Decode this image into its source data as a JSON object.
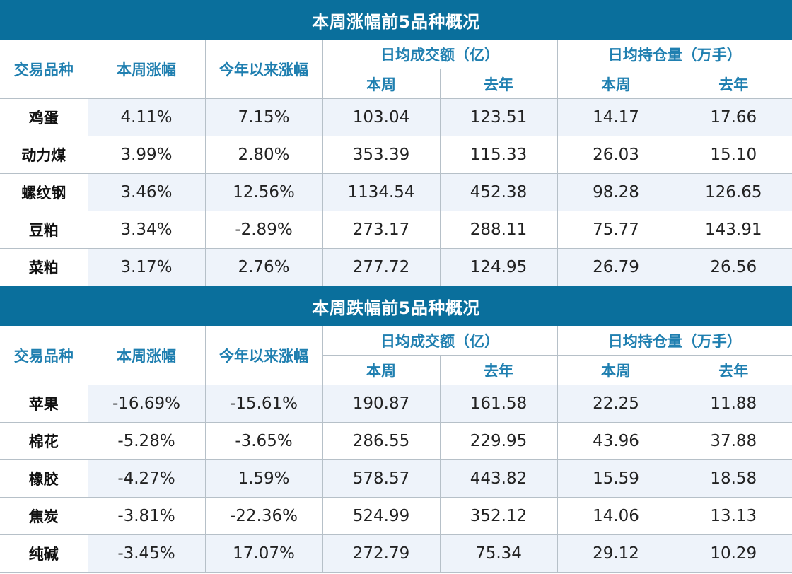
{
  "headers": {
    "variety": "交易品种",
    "week_change": "本周涨幅",
    "ytd_change": "今年以来涨幅",
    "avg_volume": "日均成交额（亿）",
    "avg_open_interest": "日均持仓量（万手）",
    "this_week": "本周",
    "last_year": "去年"
  },
  "tables": [
    {
      "title": "本周涨幅前5品种概况",
      "rows": [
        {
          "name": "鸡蛋",
          "week": "4.11%",
          "ytd": "7.15%",
          "vol_week": "103.04",
          "vol_year": "123.51",
          "oi_week": "14.17",
          "oi_year": "17.66"
        },
        {
          "name": "动力煤",
          "week": "3.99%",
          "ytd": "2.80%",
          "vol_week": "353.39",
          "vol_year": "115.33",
          "oi_week": "26.03",
          "oi_year": "15.10"
        },
        {
          "name": "螺纹钢",
          "week": "3.46%",
          "ytd": "12.56%",
          "vol_week": "1134.54",
          "vol_year": "452.38",
          "oi_week": "98.28",
          "oi_year": "126.65"
        },
        {
          "name": "豆粕",
          "week": "3.34%",
          "ytd": "-2.89%",
          "vol_week": "273.17",
          "vol_year": "288.11",
          "oi_week": "75.77",
          "oi_year": "143.91"
        },
        {
          "name": "菜粕",
          "week": "3.17%",
          "ytd": "2.76%",
          "vol_week": "277.72",
          "vol_year": "124.95",
          "oi_week": "26.79",
          "oi_year": "26.56"
        }
      ]
    },
    {
      "title": "本周跌幅前5品种概况",
      "rows": [
        {
          "name": "苹果",
          "week": "-16.69%",
          "ytd": "-15.61%",
          "vol_week": "190.87",
          "vol_year": "161.58",
          "oi_week": "22.25",
          "oi_year": "11.88"
        },
        {
          "name": "棉花",
          "week": "-5.28%",
          "ytd": "-3.65%",
          "vol_week": "286.55",
          "vol_year": "229.95",
          "oi_week": "43.96",
          "oi_year": "37.88"
        },
        {
          "name": "橡胶",
          "week": "-4.27%",
          "ytd": "1.59%",
          "vol_week": "578.57",
          "vol_year": "443.82",
          "oi_week": "15.59",
          "oi_year": "18.58"
        },
        {
          "name": "焦炭",
          "week": "-3.81%",
          "ytd": "-22.36%",
          "vol_week": "524.99",
          "vol_year": "352.12",
          "oi_week": "14.06",
          "oi_year": "13.13"
        },
        {
          "name": "纯碱",
          "week": "-3.45%",
          "ytd": "17.07%",
          "vol_week": "272.79",
          "vol_year": "75.34",
          "oi_week": "29.12",
          "oi_year": "10.29"
        }
      ]
    }
  ],
  "colors": {
    "title_bg": "#0a6f9c",
    "header_text": "#1f7fb0",
    "shade": "#eef3fa",
    "border": "#b6c0c8"
  }
}
